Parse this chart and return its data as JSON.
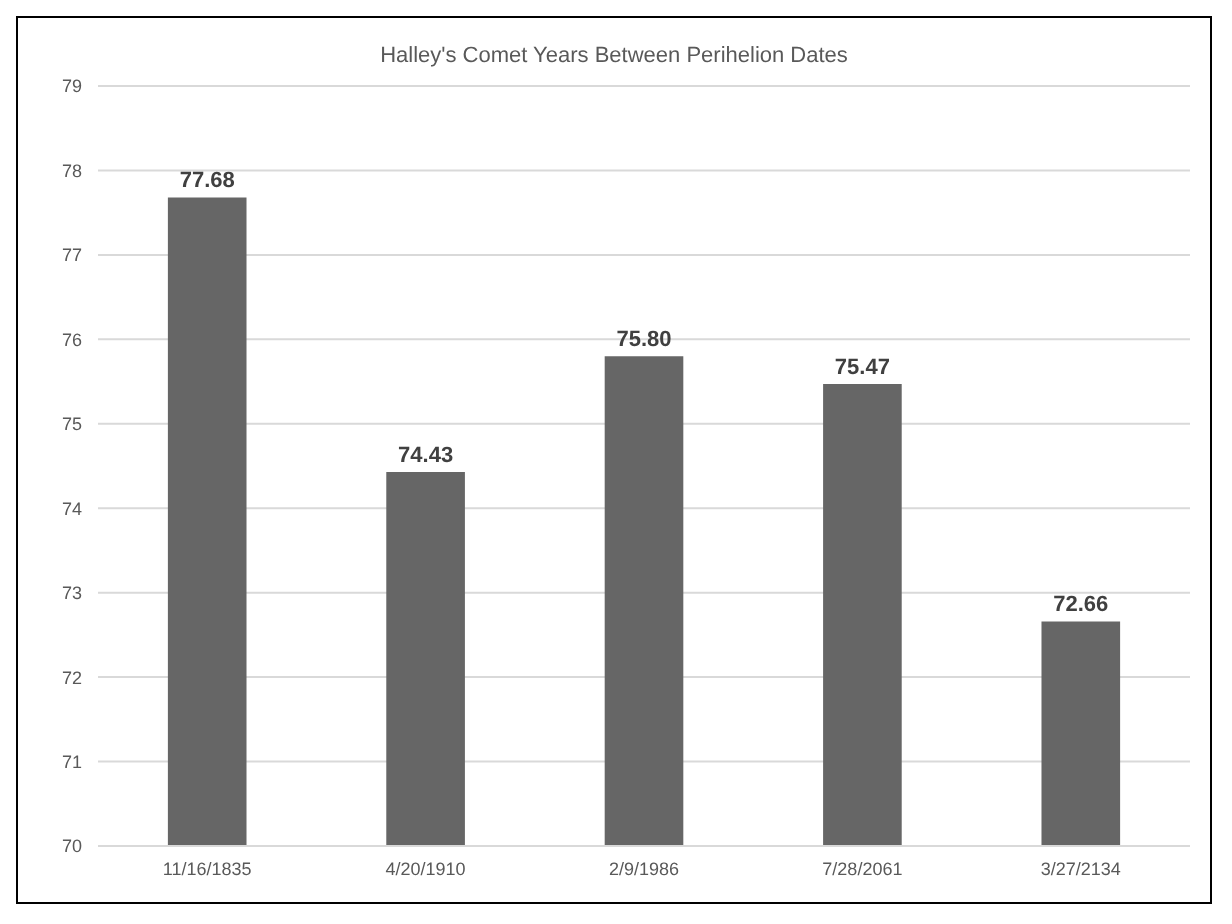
{
  "chart_data": {
    "type": "bar",
    "title": "Halley's Comet Years Between Perihelion Dates",
    "categories": [
      "11/16/1835",
      "4/20/1910",
      "2/9/1986",
      "7/28/2061",
      "3/27/2134"
    ],
    "values": [
      77.68,
      74.43,
      75.8,
      75.47,
      72.66
    ],
    "value_labels": [
      "77.68",
      "74.43",
      "75.80",
      "75.47",
      "72.66"
    ],
    "color": "#666666",
    "ylim": [
      70,
      79
    ],
    "yticks": [
      70,
      71,
      72,
      73,
      74,
      75,
      76,
      77,
      78,
      79
    ],
    "grid": "y"
  }
}
